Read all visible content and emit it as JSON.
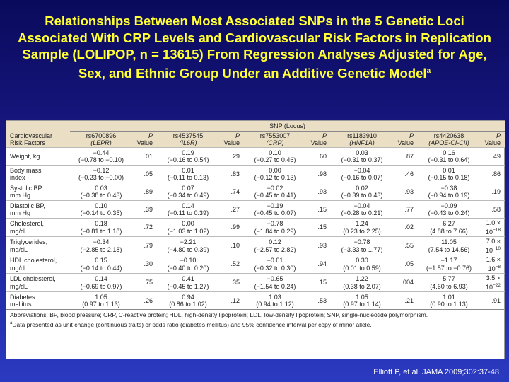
{
  "title": "Relationships Between Most Associated SNPs in the 5 Genetic Loci Associated With CRP Levels and Cardiovascular Risk Factors in Replication Sample (LOLIPOP, n = 13615) From Regression Analyses Adjusted for Age, Sex, and Ethnic Group Under an Additive Genetic Model",
  "title_sup": "a",
  "table": {
    "group_header": "SNP (Locus)",
    "row_header": [
      "Cardiovascular",
      "Risk Factors"
    ],
    "p_header": [
      "P",
      "Value"
    ],
    "snps": [
      {
        "id": "rs6700896",
        "locus": "(LEPR)"
      },
      {
        "id": "rs4537545",
        "locus": "(IL6R)"
      },
      {
        "id": "rs7553007",
        "locus": "(CRP)"
      },
      {
        "id": "rs1183910",
        "locus": "(HNF1A)"
      },
      {
        "id": "rs4420638",
        "locus": "(APOE-CI-CII)"
      }
    ],
    "rows": [
      {
        "label": [
          "Weight, kg"
        ],
        "cells": [
          {
            "est": "−0.44",
            "ci": "(−0.78 to −0.10)",
            "p": ".01"
          },
          {
            "est": "0.19",
            "ci": "(−0.16 to 0.54)",
            "p": ".29"
          },
          {
            "est": "0.10",
            "ci": "(−0.27 to 0.46)",
            "p": ".60"
          },
          {
            "est": "0.03",
            "ci": "(−0.31 to 0.37)",
            "p": ".87"
          },
          {
            "est": "0.16",
            "ci": "(−0.31 to 0.64)",
            "p": ".49"
          }
        ]
      },
      {
        "label": [
          "Body mass",
          "index"
        ],
        "cells": [
          {
            "est": "−0.12",
            "ci": "(−0.23 to −0.00)",
            "p": ".05"
          },
          {
            "est": "0.01",
            "ci": "(−0.11 to 0.13)",
            "p": ".83"
          },
          {
            "est": "0.00",
            "ci": "(−0.12 to 0.13)",
            "p": ".98"
          },
          {
            "est": "−0.04",
            "ci": "(−0.16 to 0.07)",
            "p": ".46"
          },
          {
            "est": "0.01",
            "ci": "(−0.15 to 0.18)",
            "p": ".86"
          }
        ]
      },
      {
        "label": [
          "Systolic BP,",
          "mm Hg"
        ],
        "cells": [
          {
            "est": "0.03",
            "ci": "(−0.38 to 0.43)",
            "p": ".89"
          },
          {
            "est": "0.07",
            "ci": "(−0.34 to 0.49)",
            "p": ".74"
          },
          {
            "est": "−0.02",
            "ci": "(−0.45 to 0.41)",
            "p": ".93"
          },
          {
            "est": "0.02",
            "ci": "(−0.39 to 0.43)",
            "p": ".93"
          },
          {
            "est": "−0.38",
            "ci": "(−0.94 to 0.19)",
            "p": ".19"
          }
        ]
      },
      {
        "label": [
          "Diastolic BP,",
          "mm Hg"
        ],
        "cells": [
          {
            "est": "0.10",
            "ci": "(−0.14 to 0.35)",
            "p": ".39"
          },
          {
            "est": "0.14",
            "ci": "(−0.11 to 0.39)",
            "p": ".27"
          },
          {
            "est": "−0.19",
            "ci": "(−0.45 to 0.07)",
            "p": ".15"
          },
          {
            "est": "−0.04",
            "ci": "(−0.28 to 0.21)",
            "p": ".77"
          },
          {
            "est": "−0.09",
            "ci": "(−0.43 to 0.24)",
            "p": ".58"
          }
        ]
      },
      {
        "label": [
          "Cholesterol,",
          "mg/dL"
        ],
        "cells": [
          {
            "est": "0.18",
            "ci": "(−0.81 to 1.18)",
            "p": ".72"
          },
          {
            "est": "0.00",
            "ci": "(−1.03 to 1.02)",
            "p": ".99"
          },
          {
            "est": "−0.78",
            "ci": "(−1.84 to 0.29)",
            "p": ".15"
          },
          {
            "est": "1.24",
            "ci": "(0.23 to 2.25)",
            "p": ".02"
          },
          {
            "est": "6.27",
            "ci": "(4.88 to 7.66)",
            "p": {
              "base": "1.0 × 10",
              "exp": "−18"
            }
          }
        ]
      },
      {
        "label": [
          "Triglycerides,",
          "mg/dL"
        ],
        "cells": [
          {
            "est": "−0.34",
            "ci": "(−2.85 to 2.18)",
            "p": ".79"
          },
          {
            "est": "−2.21",
            "ci": "(−4.80 to 0.39)",
            "p": ".10"
          },
          {
            "est": "0.12",
            "ci": "(−2.57 to 2.82)",
            "p": ".93"
          },
          {
            "est": "−0.78",
            "ci": "(−3.33 to 1.77)",
            "p": ".55"
          },
          {
            "est": "11.05",
            "ci": "(7.54 to 14.56)",
            "p": {
              "base": "7.0 × 10",
              "exp": "−10"
            }
          }
        ]
      },
      {
        "label": [
          "HDL cholesterol,",
          "mg/dL"
        ],
        "cells": [
          {
            "est": "0.15",
            "ci": "(−0.14 to 0.44)",
            "p": ".30"
          },
          {
            "est": "−0.10",
            "ci": "(−0.40 to 0.20)",
            "p": ".52"
          },
          {
            "est": "−0.01",
            "ci": "(−0.32 to 0.30)",
            "p": ".94"
          },
          {
            "est": "0.30",
            "ci": "(0.01 to 0.59)",
            "p": ".05"
          },
          {
            "est": "−1.17",
            "ci": "(−1.57 to −0.76)",
            "p": {
              "base": "1.6 × 10",
              "exp": "−8"
            }
          }
        ]
      },
      {
        "label": [
          "LDL cholesterol,",
          "mg/dL"
        ],
        "cells": [
          {
            "est": "0.14",
            "ci": "(−0.69 to 0.97)",
            "p": ".75"
          },
          {
            "est": "0.41",
            "ci": "(−0.45 to 1.27)",
            "p": ".35"
          },
          {
            "est": "−0.65",
            "ci": "(−1.54 to 0.24)",
            "p": ".15"
          },
          {
            "est": "1.22",
            "ci": "(0.38 to 2.07)",
            "p": ".004"
          },
          {
            "est": "5.77",
            "ci": "(4.60 to 6.93)",
            "p": {
              "base": "3.5 × 10",
              "exp": "−22"
            }
          }
        ]
      },
      {
        "label": [
          "Diabetes",
          "mellitus"
        ],
        "cells": [
          {
            "est": "1.05",
            "ci": "(0.97 to 1.13)",
            "p": ".26"
          },
          {
            "est": "0.94",
            "ci": "(0.86 to 1.02)",
            "p": ".12"
          },
          {
            "est": "1.03",
            "ci": "(0.94 to 1.12)",
            "p": ".53"
          },
          {
            "est": "1.05",
            "ci": "(0.97 to 1.14)",
            "p": ".21"
          },
          {
            "est": "1.01",
            "ci": "(0.90 to 1.13)",
            "p": ".91"
          }
        ]
      }
    ],
    "footnotes": [
      {
        "mark": "",
        "text": "Abbreviations: BP, blood pressure; CRP, C-reactive protein; HDL, high-density lipoprotein; LDL, low-density lipoprotein; SNP, single-nucleotide polymorphism."
      },
      {
        "mark": "a",
        "text": "Data presented as unit change (continuous traits) or odds ratio (diabetes mellitus) and 95% confidence interval per copy of minor allele."
      }
    ]
  },
  "citation": "Elliott P, et al. JAMA 2009;302:37-48"
}
